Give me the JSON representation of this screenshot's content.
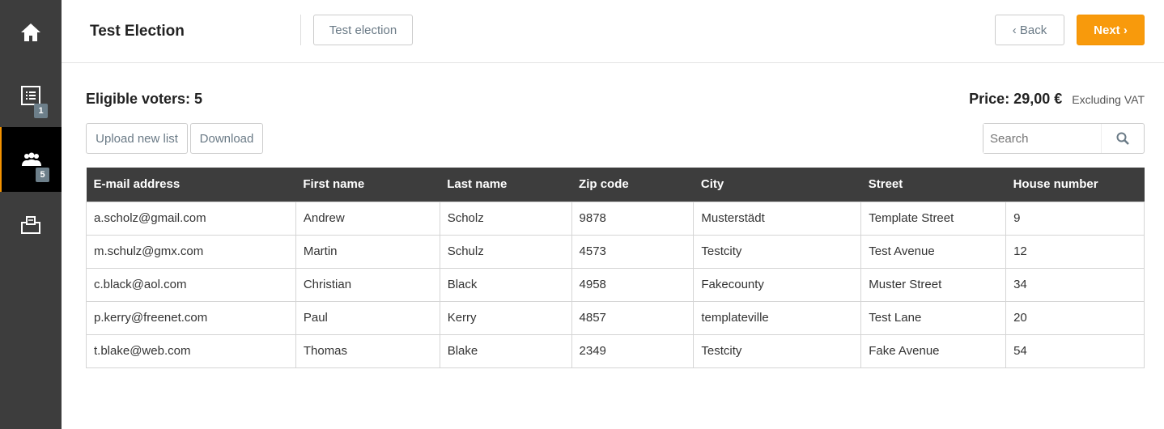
{
  "sidebar": {
    "items": [
      {
        "icon": "home-icon"
      },
      {
        "icon": "list-icon",
        "badge": "1"
      },
      {
        "icon": "voters-icon",
        "badge": "5",
        "active": true
      },
      {
        "icon": "ballot-box-icon"
      }
    ],
    "accent": "#f39200"
  },
  "header": {
    "title": "Test Election",
    "election_button": "Test election",
    "back_label": "Back",
    "next_label": "Next"
  },
  "main": {
    "eligible_voters": "Eligible voters: 5",
    "price": "Price: 29,00 €",
    "vat_note": "Excluding VAT",
    "upload_label": "Upload new list",
    "download_label": "Download",
    "search_placeholder": "Search",
    "columns": [
      "E-mail address",
      "First name",
      "Last name",
      "Zip code",
      "City",
      "Street",
      "House number"
    ],
    "rows": [
      [
        "a.scholz@gmail.com",
        "Andrew",
        "Scholz",
        "9878",
        "Musterstädt",
        "Template Street",
        "9"
      ],
      [
        "m.schulz@gmx.com",
        "Martin",
        "Schulz",
        "4573",
        "Testcity",
        "Test Avenue",
        "12"
      ],
      [
        "c.black@aol.com",
        "Christian",
        "Black",
        "4958",
        "Fakecounty",
        "Muster Street",
        "34"
      ],
      [
        "p.kerry@freenet.com",
        "Paul",
        "Kerry",
        "4857",
        "templateville",
        "Test Lane",
        "20"
      ],
      [
        "t.blake@web.com",
        "Thomas",
        "Blake",
        "2349",
        "Testcity",
        "Fake Avenue",
        "54"
      ]
    ]
  }
}
